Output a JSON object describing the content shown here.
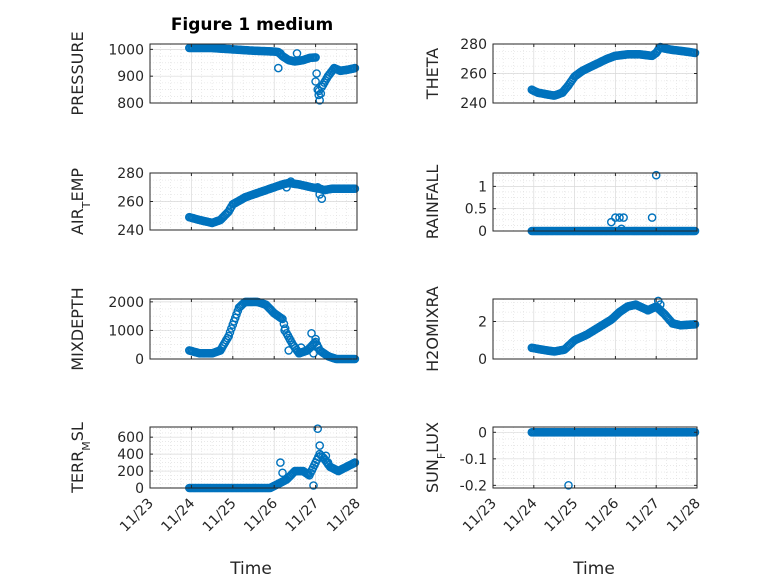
{
  "figure": {
    "title": "Figure 1 medium",
    "marker_color": "#0072BD",
    "xlabel": "Time",
    "xticklabels": [
      "11/23",
      "11/24",
      "11/25",
      "11/26",
      "11/27",
      "11/28"
    ]
  },
  "chart_data": [
    {
      "type": "scatter",
      "ylabel": "PRESSURE",
      "xlim": [
        0,
        5
      ],
      "ylim": [
        800,
        1020
      ],
      "yticks": [
        800,
        900,
        1000
      ],
      "yticklabels": [
        "800",
        "900",
        "1000"
      ],
      "grid": true,
      "series": [
        {
          "anchors": [
            [
              0.95,
              1005
            ],
            [
              1.5,
              1005
            ],
            [
              2.0,
              1000
            ],
            [
              2.5,
              995
            ],
            [
              3.0,
              992
            ],
            [
              3.1,
              990
            ],
            [
              3.2,
              975
            ],
            [
              3.35,
              960
            ],
            [
              3.5,
              955
            ],
            [
              3.7,
              960
            ],
            [
              3.85,
              968
            ],
            [
              4.0,
              970
            ],
            [
              4.05,
              850
            ],
            [
              4.1,
              810
            ],
            [
              4.15,
              860
            ],
            [
              4.3,
              900
            ],
            [
              4.45,
              930
            ],
            [
              4.6,
              920
            ],
            [
              4.8,
              925
            ],
            [
              4.95,
              930
            ]
          ],
          "outliers": [
            [
              3.1,
              930
            ],
            [
              3.15,
              985
            ],
            [
              3.55,
              985
            ],
            [
              4.0,
              880
            ],
            [
              4.08,
              845
            ]
          ]
        }
      ]
    },
    {
      "type": "scatter",
      "ylabel": "THETA",
      "xlim": [
        0,
        5
      ],
      "ylim": [
        240,
        280
      ],
      "yticks": [
        240,
        260,
        280
      ],
      "yticklabels": [
        "240",
        "260",
        "280"
      ],
      "grid": true,
      "series": [
        {
          "anchors": [
            [
              0.95,
              249
            ],
            [
              1.1,
              247
            ],
            [
              1.3,
              246
            ],
            [
              1.5,
              245
            ],
            [
              1.7,
              247
            ],
            [
              1.85,
              252
            ],
            [
              2.0,
              258
            ],
            [
              2.2,
              262
            ],
            [
              2.5,
              266
            ],
            [
              2.8,
              270
            ],
            [
              3.0,
              272
            ],
            [
              3.3,
              273
            ],
            [
              3.6,
              273
            ],
            [
              3.9,
              272
            ],
            [
              4.0,
              274
            ],
            [
              4.1,
              278
            ],
            [
              4.2,
              277
            ],
            [
              4.4,
              276
            ],
            [
              4.7,
              275
            ],
            [
              4.95,
              274
            ]
          ],
          "outliers": []
        }
      ]
    },
    {
      "type": "scatter",
      "ylabel": "AIR_TEMP",
      "xlim": [
        0,
        5
      ],
      "ylim": [
        240,
        280
      ],
      "yticks": [
        240,
        260,
        280
      ],
      "yticklabels": [
        "240",
        "260",
        "280"
      ],
      "grid": true,
      "series": [
        {
          "anchors": [
            [
              0.95,
              249
            ],
            [
              1.2,
              247
            ],
            [
              1.5,
              245
            ],
            [
              1.7,
              247
            ],
            [
              1.9,
              253
            ],
            [
              2.0,
              258
            ],
            [
              2.3,
              263
            ],
            [
              2.6,
              266
            ],
            [
              2.9,
              269
            ],
            [
              3.2,
              272
            ],
            [
              3.35,
              273
            ],
            [
              3.6,
              272
            ],
            [
              3.9,
              270
            ],
            [
              4.1,
              269
            ],
            [
              4.2,
              268
            ],
            [
              4.4,
              269
            ],
            [
              4.7,
              269
            ],
            [
              4.95,
              269
            ]
          ],
          "outliers": [
            [
              3.3,
              270
            ],
            [
              3.4,
              274
            ],
            [
              4.1,
              265
            ],
            [
              4.15,
              262
            ],
            [
              4.05,
              270
            ]
          ]
        }
      ]
    },
    {
      "type": "scatter",
      "ylabel": "RAINFALL",
      "xlim": [
        0,
        5
      ],
      "ylim": [
        0,
        1.3
      ],
      "yticks": [
        0,
        0.5,
        1
      ],
      "yticklabels": [
        "0",
        "0.5",
        "1"
      ],
      "grid": true,
      "series": [
        {
          "anchors": [
            [
              0.95,
              0
            ],
            [
              4.95,
              0
            ]
          ],
          "outliers": [
            [
              2.9,
              0.2
            ],
            [
              3.0,
              0.3
            ],
            [
              3.1,
              0.3
            ],
            [
              3.2,
              0.3
            ],
            [
              3.15,
              0.05
            ],
            [
              3.9,
              0.3
            ],
            [
              4.0,
              1.25
            ]
          ]
        }
      ]
    },
    {
      "type": "scatter",
      "ylabel": "MIXDEPTH",
      "xlim": [
        0,
        5
      ],
      "ylim": [
        0,
        2100
      ],
      "yticks": [
        0,
        1000,
        2000
      ],
      "yticklabels": [
        "0",
        "1000",
        "2000"
      ],
      "grid": true,
      "series": [
        {
          "anchors": [
            [
              0.95,
              300
            ],
            [
              1.2,
              200
            ],
            [
              1.5,
              200
            ],
            [
              1.7,
              300
            ],
            [
              1.9,
              800
            ],
            [
              2.0,
              1200
            ],
            [
              2.15,
              1800
            ],
            [
              2.3,
              2000
            ],
            [
              2.6,
              2000
            ],
            [
              2.8,
              1900
            ],
            [
              3.0,
              1600
            ],
            [
              3.2,
              1400
            ],
            [
              3.3,
              900
            ],
            [
              3.45,
              500
            ],
            [
              3.6,
              200
            ],
            [
              3.8,
              300
            ],
            [
              4.0,
              600
            ],
            [
              4.1,
              300
            ],
            [
              4.3,
              100
            ],
            [
              4.5,
              0
            ],
            [
              4.95,
              0
            ]
          ],
          "outliers": [
            [
              3.25,
              1000
            ],
            [
              3.35,
              300
            ],
            [
              3.65,
              400
            ],
            [
              3.9,
              900
            ],
            [
              4.0,
              700
            ],
            [
              3.95,
              200
            ]
          ]
        }
      ]
    },
    {
      "type": "scatter",
      "ylabel": "H2OMIXRA",
      "xlim": [
        0,
        5
      ],
      "ylim": [
        0,
        3.2
      ],
      "yticks": [
        0,
        2
      ],
      "yticklabels": [
        "0",
        "2"
      ],
      "grid": true,
      "series": [
        {
          "anchors": [
            [
              0.95,
              0.6
            ],
            [
              1.2,
              0.5
            ],
            [
              1.5,
              0.4
            ],
            [
              1.75,
              0.5
            ],
            [
              2.0,
              1.0
            ],
            [
              2.3,
              1.3
            ],
            [
              2.6,
              1.7
            ],
            [
              2.9,
              2.1
            ],
            [
              3.1,
              2.5
            ],
            [
              3.3,
              2.8
            ],
            [
              3.5,
              2.9
            ],
            [
              3.8,
              2.6
            ],
            [
              4.0,
              2.8
            ],
            [
              4.2,
              2.4
            ],
            [
              4.4,
              1.9
            ],
            [
              4.6,
              1.8
            ],
            [
              4.95,
              1.85
            ]
          ],
          "outliers": [
            [
              4.05,
              3.1
            ],
            [
              4.1,
              2.9
            ]
          ]
        }
      ]
    },
    {
      "type": "scatter",
      "ylabel": "TERR_MSL",
      "xlim": [
        0,
        5
      ],
      "ylim": [
        0,
        720
      ],
      "yticks": [
        0,
        200,
        400,
        600
      ],
      "yticklabels": [
        "0",
        "200",
        "400",
        "600"
      ],
      "grid": true,
      "series": [
        {
          "anchors": [
            [
              0.95,
              0
            ],
            [
              2.9,
              0
            ],
            [
              3.1,
              50
            ],
            [
              3.3,
              100
            ],
            [
              3.5,
              200
            ],
            [
              3.7,
              200
            ],
            [
              3.85,
              150
            ],
            [
              4.0,
              300
            ],
            [
              4.1,
              400
            ],
            [
              4.2,
              350
            ],
            [
              4.35,
              250
            ],
            [
              4.55,
              200
            ],
            [
              4.75,
              250
            ],
            [
              4.95,
              300
            ]
          ],
          "outliers": [
            [
              3.15,
              300
            ],
            [
              3.2,
              180
            ],
            [
              4.05,
              700
            ],
            [
              4.1,
              500
            ],
            [
              3.95,
              30
            ],
            [
              4.25,
              380
            ],
            [
              4.3,
              300
            ]
          ]
        }
      ]
    },
    {
      "type": "scatter",
      "ylabel": "SUN_FLUX",
      "xlim": [
        0,
        5
      ],
      "ylim": [
        -0.21,
        0.02
      ],
      "yticks": [
        -0.2,
        -0.1,
        0
      ],
      "yticklabels": [
        "-0.2",
        "-0.1",
        "0"
      ],
      "grid": true,
      "series": [
        {
          "anchors": [
            [
              0.95,
              0
            ],
            [
              4.95,
              0
            ]
          ],
          "outliers": [
            [
              1.85,
              -0.2
            ]
          ]
        }
      ]
    }
  ]
}
